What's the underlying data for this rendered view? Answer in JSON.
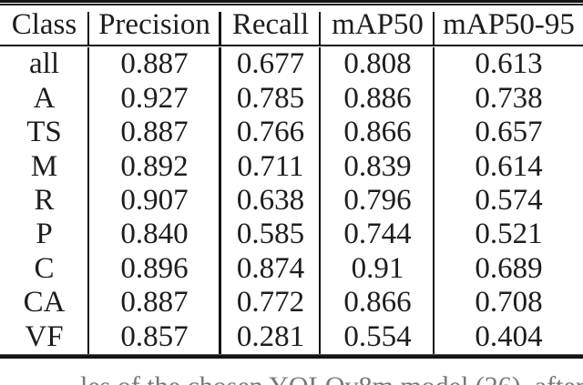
{
  "table": {
    "headers": [
      "Class",
      "Precision",
      "Recall",
      "mAP50",
      "mAP50-95"
    ],
    "rows": [
      [
        "all",
        "0.887",
        "0.677",
        "0.808",
        "0.613"
      ],
      [
        "A",
        "0.927",
        "0.785",
        "0.886",
        "0.738"
      ],
      [
        "TS",
        "0.887",
        "0.766",
        "0.866",
        "0.657"
      ],
      [
        "M",
        "0.892",
        "0.711",
        "0.839",
        "0.614"
      ],
      [
        "R",
        "0.907",
        "0.638",
        "0.796",
        "0.574"
      ],
      [
        "P",
        "0.840",
        "0.585",
        "0.744",
        "0.521"
      ],
      [
        "C",
        "0.896",
        "0.874",
        "0.91",
        "0.689"
      ],
      [
        "CA",
        "0.887",
        "0.772",
        "0.866",
        "0.708"
      ],
      [
        "VF",
        "0.857",
        "0.281",
        "0.554",
        "0.404"
      ]
    ]
  },
  "caption_fragment": "les of the chosen YOLOv8m model (26), after",
  "colors": {
    "background": "#ffffff",
    "text": "#1d1d1d",
    "rule": "#141414",
    "caption": "#777777"
  },
  "chart_data": {
    "type": "table",
    "title": "",
    "columns": [
      "Class",
      "Precision",
      "Recall",
      "mAP50",
      "mAP50-95"
    ],
    "rows": [
      {
        "Class": "all",
        "Precision": 0.887,
        "Recall": 0.677,
        "mAP50": 0.808,
        "mAP50-95": 0.613
      },
      {
        "Class": "A",
        "Precision": 0.927,
        "Recall": 0.785,
        "mAP50": 0.886,
        "mAP50-95": 0.738
      },
      {
        "Class": "TS",
        "Precision": 0.887,
        "Recall": 0.766,
        "mAP50": 0.866,
        "mAP50-95": 0.657
      },
      {
        "Class": "M",
        "Precision": 0.892,
        "Recall": 0.711,
        "mAP50": 0.839,
        "mAP50-95": 0.614
      },
      {
        "Class": "R",
        "Precision": 0.907,
        "Recall": 0.638,
        "mAP50": 0.796,
        "mAP50-95": 0.574
      },
      {
        "Class": "P",
        "Precision": 0.84,
        "Recall": 0.585,
        "mAP50": 0.744,
        "mAP50-95": 0.521
      },
      {
        "Class": "C",
        "Precision": 0.896,
        "Recall": 0.874,
        "mAP50": 0.91,
        "mAP50-95": 0.689
      },
      {
        "Class": "CA",
        "Precision": 0.887,
        "Recall": 0.772,
        "mAP50": 0.866,
        "mAP50-95": 0.708
      },
      {
        "Class": "VF",
        "Precision": 0.857,
        "Recall": 0.281,
        "mAP50": 0.554,
        "mAP50-95": 0.404
      }
    ]
  }
}
